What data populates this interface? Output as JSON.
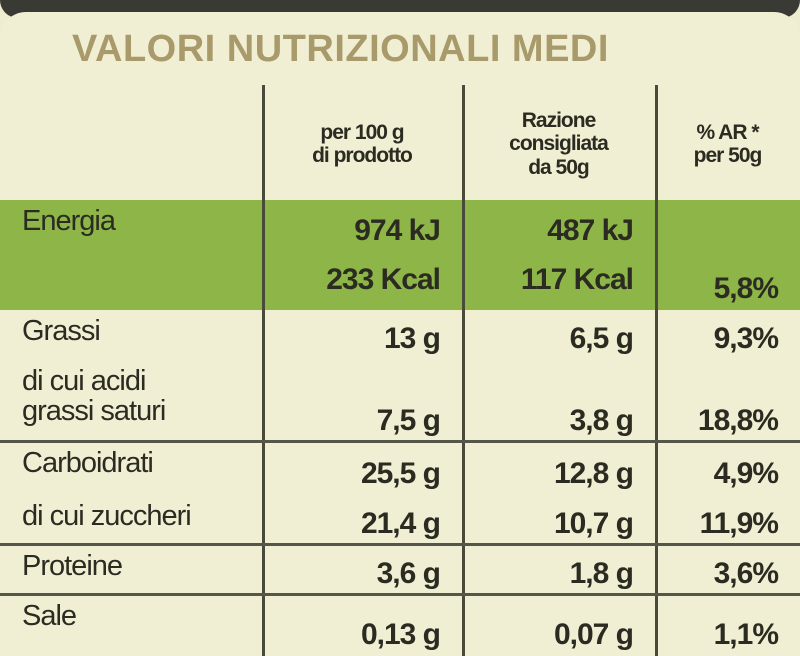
{
  "title": "VALORI NUTRIZIONALI MEDI",
  "header": {
    "per_100g": "per 100 g\ndi prodotto",
    "ration": "Razione\nconsigliata\nda 50g",
    "ar": "% AR *\nper 50g"
  },
  "rows": [
    {
      "label": "Energia",
      "per_100g": [
        "974 kJ",
        "233 Kcal"
      ],
      "ration": [
        "487 kJ",
        "117 Kcal"
      ],
      "ar": "5,8%"
    },
    {
      "label": "Grassi",
      "per_100g": "13 g",
      "ration": "6,5 g",
      "ar": "9,3%"
    },
    {
      "label": "di cui acidi\ngrassi saturi",
      "per_100g": "7,5 g",
      "ration": "3,8 g",
      "ar": "18,8%"
    },
    {
      "label": "Carboidrati",
      "per_100g": "25,5 g",
      "ration": "12,8 g",
      "ar": "4,9%"
    },
    {
      "label": "di cui zuccheri",
      "per_100g": "21,4 g",
      "ration": "10,7 g",
      "ar": "11,9%"
    },
    {
      "label": "Proteine",
      "per_100g": "3,6 g",
      "ration": "1,8 g",
      "ar": "3,6%"
    },
    {
      "label": "Sale",
      "per_100g": "0,13 g",
      "ration": "0,07 g",
      "ar": "1,1%"
    }
  ]
}
